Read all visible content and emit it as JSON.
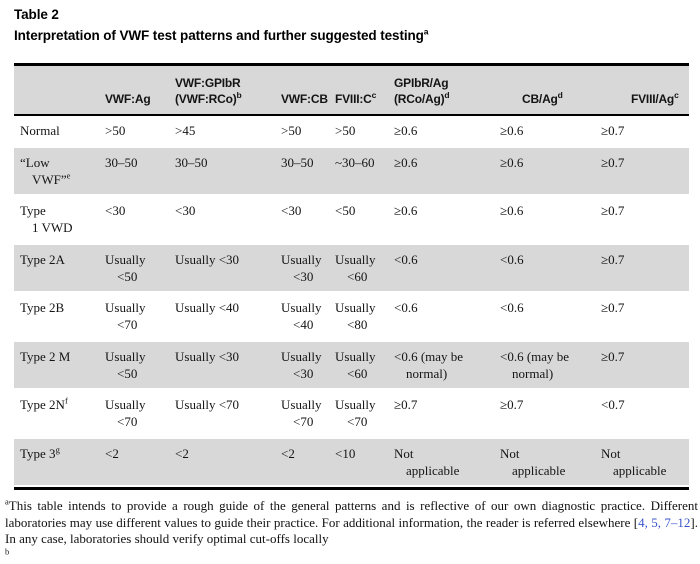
{
  "colors": {
    "row_shade": "#d8d8d8",
    "citation_blue": "#3a55cc",
    "rule_black": "#000000"
  },
  "title": {
    "label": "Table 2",
    "subtitle": "Interpretation of VWF test patterns and further suggested testing",
    "subtitle_sup": "a"
  },
  "table": {
    "columns": [
      {
        "line1": "",
        "line2": "",
        "sup": ""
      },
      {
        "line1": "",
        "line2": "VWF:Ag",
        "sup": ""
      },
      {
        "line1": "VWF:GPIbR",
        "line2": "(VWF:RCo)",
        "sup": "b"
      },
      {
        "line1": "",
        "line2": "VWF:CB",
        "sup": ""
      },
      {
        "line1": "",
        "line2": "FVIII:C",
        "sup": "c"
      },
      {
        "line1": "GPIbR/Ag",
        "line2": "(RCo/Ag)",
        "sup": "d"
      },
      {
        "line1": "",
        "line2": "CB/Ag",
        "sup": "d"
      },
      {
        "line1": "",
        "line2": "FVIII/Ag",
        "sup": "c"
      }
    ],
    "rows": [
      {
        "label": [
          "Normal"
        ],
        "sup": "",
        "shaded": false,
        "cells": [
          [
            ">50"
          ],
          [
            ">45"
          ],
          [
            ">50"
          ],
          [
            ">50"
          ],
          [
            "≥0.6"
          ],
          [
            "≥0.6"
          ],
          [
            "≥0.7"
          ]
        ]
      },
      {
        "label": [
          "“Low",
          "VWF”"
        ],
        "sup": "e",
        "shaded": true,
        "cells": [
          [
            "30–50"
          ],
          [
            "30–50"
          ],
          [
            "30–50"
          ],
          [
            "~30–60"
          ],
          [
            "≥0.6"
          ],
          [
            "≥0.6"
          ],
          [
            "≥0.7"
          ]
        ]
      },
      {
        "label": [
          "Type",
          "1 VWD"
        ],
        "sup": "",
        "shaded": false,
        "cells": [
          [
            "<30"
          ],
          [
            "<30"
          ],
          [
            "<30"
          ],
          [
            "<50"
          ],
          [
            "≥0.6"
          ],
          [
            "≥0.6"
          ],
          [
            "≥0.7"
          ]
        ]
      },
      {
        "label": [
          "Type 2A"
        ],
        "sup": "",
        "shaded": true,
        "cells": [
          [
            "Usually",
            "<50"
          ],
          [
            "Usually <30"
          ],
          [
            "Usually",
            "<30"
          ],
          [
            "Usually",
            "<60"
          ],
          [
            "<0.6"
          ],
          [
            "<0.6"
          ],
          [
            "≥0.7"
          ]
        ]
      },
      {
        "label": [
          "Type 2B"
        ],
        "sup": "",
        "shaded": false,
        "cells": [
          [
            "Usually",
            "<70"
          ],
          [
            "Usually <40"
          ],
          [
            "Usually",
            "<40"
          ],
          [
            "Usually",
            "<80"
          ],
          [
            "<0.6"
          ],
          [
            "<0.6"
          ],
          [
            "≥0.7"
          ]
        ]
      },
      {
        "label": [
          "Type 2 M"
        ],
        "sup": "",
        "shaded": true,
        "cells": [
          [
            "Usually",
            "<50"
          ],
          [
            "Usually <30"
          ],
          [
            "Usually",
            "<30"
          ],
          [
            "Usually",
            "<60"
          ],
          [
            "<0.6 (may be",
            "normal)"
          ],
          [
            "<0.6 (may be",
            "normal)"
          ],
          [
            "≥0.7"
          ]
        ]
      },
      {
        "label": [
          "Type 2N"
        ],
        "sup": "f",
        "shaded": false,
        "cells": [
          [
            "Usually",
            "<70"
          ],
          [
            "Usually <70"
          ],
          [
            "Usually",
            "<70"
          ],
          [
            "Usually",
            "<70"
          ],
          [
            "≥0.7"
          ],
          [
            "≥0.7"
          ],
          [
            "<0.7"
          ]
        ]
      },
      {
        "label": [
          "Type 3"
        ],
        "sup": "g",
        "shaded": true,
        "cells": [
          [
            "<2"
          ],
          [
            "<2"
          ],
          [
            "<2"
          ],
          [
            "<10"
          ],
          [
            "Not",
            "applicable"
          ],
          [
            "Not",
            "applicable"
          ],
          [
            "Not",
            "applicable"
          ]
        ]
      }
    ]
  },
  "footnote": {
    "sup": "a",
    "text_before": "This table intends to provide a rough guide of the general patterns and is reflective of our own diagnostic practice. Different laboratories may use different values to guide their practice. For additional information, the reader is referred elsewhere [",
    "citation": "4, 5, 7–12",
    "text_after": "]. In any case, laboratories should verify optimal cut-offs locally",
    "next_partial": "b"
  }
}
